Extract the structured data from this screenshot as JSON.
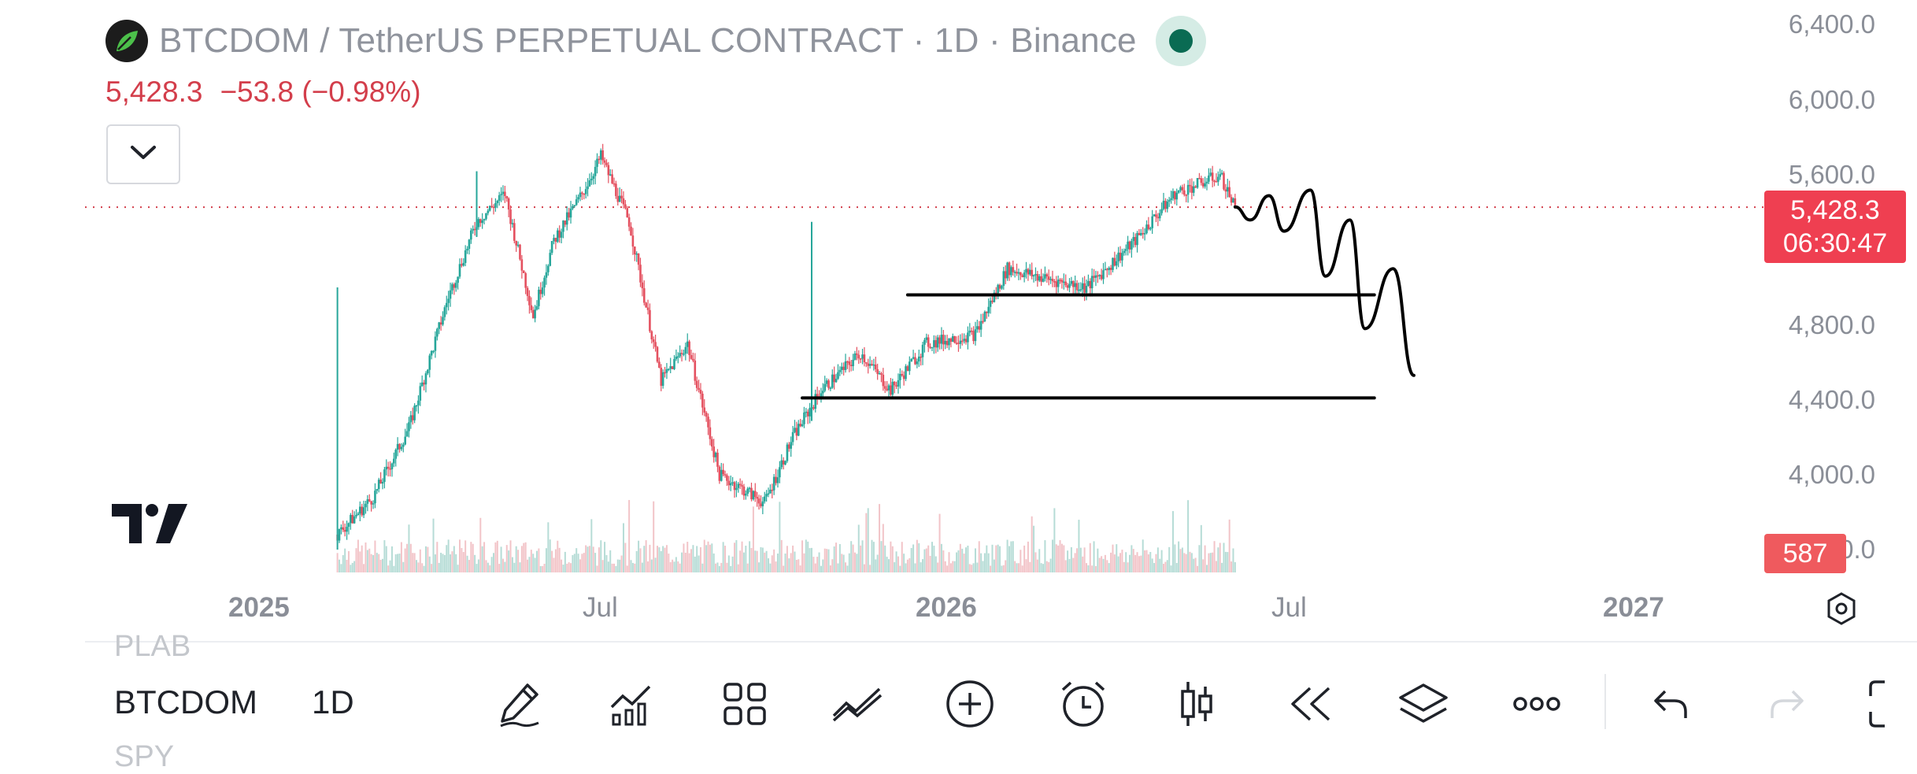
{
  "header": {
    "title": "BTCDOM / TetherUS PERPETUAL CONTRACT · 1D · Binance",
    "price": "5,428.3",
    "change": "−53.8 (−0.98%)",
    "logo_icon": "leaf-logo-icon",
    "collapse_icon": "chevron-down-icon"
  },
  "price_scale": {
    "labels": [
      "6,400.0",
      "6,000.0",
      "5,600.0",
      "4,800.0",
      "4,400.0",
      "4,000.0",
      "3,600.0"
    ],
    "current_price": "5,428.3",
    "countdown": "06:30:47",
    "volume_badge": "587",
    "current_color": "#ef3f51"
  },
  "time_axis": {
    "labels": [
      "2025",
      "Jul",
      "2026",
      "Jul",
      "2027"
    ]
  },
  "chart_data": {
    "type": "candlestick",
    "symbol": "BTCDOM",
    "interval": "1D",
    "ylim": [
      3600,
      6400
    ],
    "up_color": "#26a69a",
    "down_color": "#e4505f",
    "path": [
      [
        "2025-02-10",
        3680
      ],
      [
        "2025-03-01",
        3880
      ],
      [
        "2025-03-20",
        4250
      ],
      [
        "2025-04-10",
        4950
      ],
      [
        "2025-04-25",
        5350
      ],
      [
        "2025-05-10",
        5500
      ],
      [
        "2025-05-25",
        4850
      ],
      [
        "2025-06-05",
        5250
      ],
      [
        "2025-06-20",
        5500
      ],
      [
        "2025-06-30",
        5700
      ],
      [
        "2025-07-15",
        5350
      ],
      [
        "2025-08-01",
        4500
      ],
      [
        "2025-08-15",
        4700
      ],
      [
        "2025-09-01",
        4000
      ],
      [
        "2025-09-25",
        3850
      ],
      [
        "2025-10-10",
        4200
      ],
      [
        "2025-10-25",
        4450
      ],
      [
        "2025-11-15",
        4650
      ],
      [
        "2025-12-01",
        4450
      ],
      [
        "2025-12-20",
        4700
      ],
      [
        "2026-01-15",
        4750
      ],
      [
        "2026-02-01",
        5100
      ],
      [
        "2026-02-20",
        5050
      ],
      [
        "2026-03-15",
        5000
      ],
      [
        "2026-04-10",
        5250
      ],
      [
        "2026-05-01",
        5500
      ],
      [
        "2026-05-25",
        5600
      ],
      [
        "2026-06-02",
        5428.3
      ]
    ],
    "spikes": [
      [
        "2025-02-10",
        5000
      ],
      [
        "2025-04-25",
        5620
      ],
      [
        "2025-10-20",
        5350
      ]
    ],
    "drawings": {
      "horizontal_lines": [
        {
          "from": "2025-12-10",
          "to": "2026-08-15",
          "price": 4960
        },
        {
          "from": "2025-10-15",
          "to": "2026-08-15",
          "price": 4410
        }
      ],
      "projection": [
        [
          "2026-06-02",
          5430
        ],
        [
          "2026-06-10",
          5360
        ],
        [
          "2026-06-20",
          5490
        ],
        [
          "2026-06-28",
          5300
        ],
        [
          "2026-07-12",
          5520
        ],
        [
          "2026-07-20",
          5060
        ],
        [
          "2026-08-02",
          5360
        ],
        [
          "2026-08-10",
          4780
        ],
        [
          "2026-08-25",
          5100
        ],
        [
          "2026-09-05",
          4530
        ]
      ]
    }
  },
  "bottom_bar": {
    "symbol_prev": "PLAB",
    "symbol": "BTCDOM",
    "symbol_next": "SPY",
    "interval": "1D",
    "tools": [
      "pencil-icon",
      "indicators-icon",
      "grid-icon",
      "trend-lines-icon",
      "add-icon",
      "alarm-icon",
      "candles-icon",
      "replay-icon",
      "layers-icon",
      "more-icon",
      "undo-icon",
      "redo-icon",
      "fullscreen-icon"
    ]
  }
}
